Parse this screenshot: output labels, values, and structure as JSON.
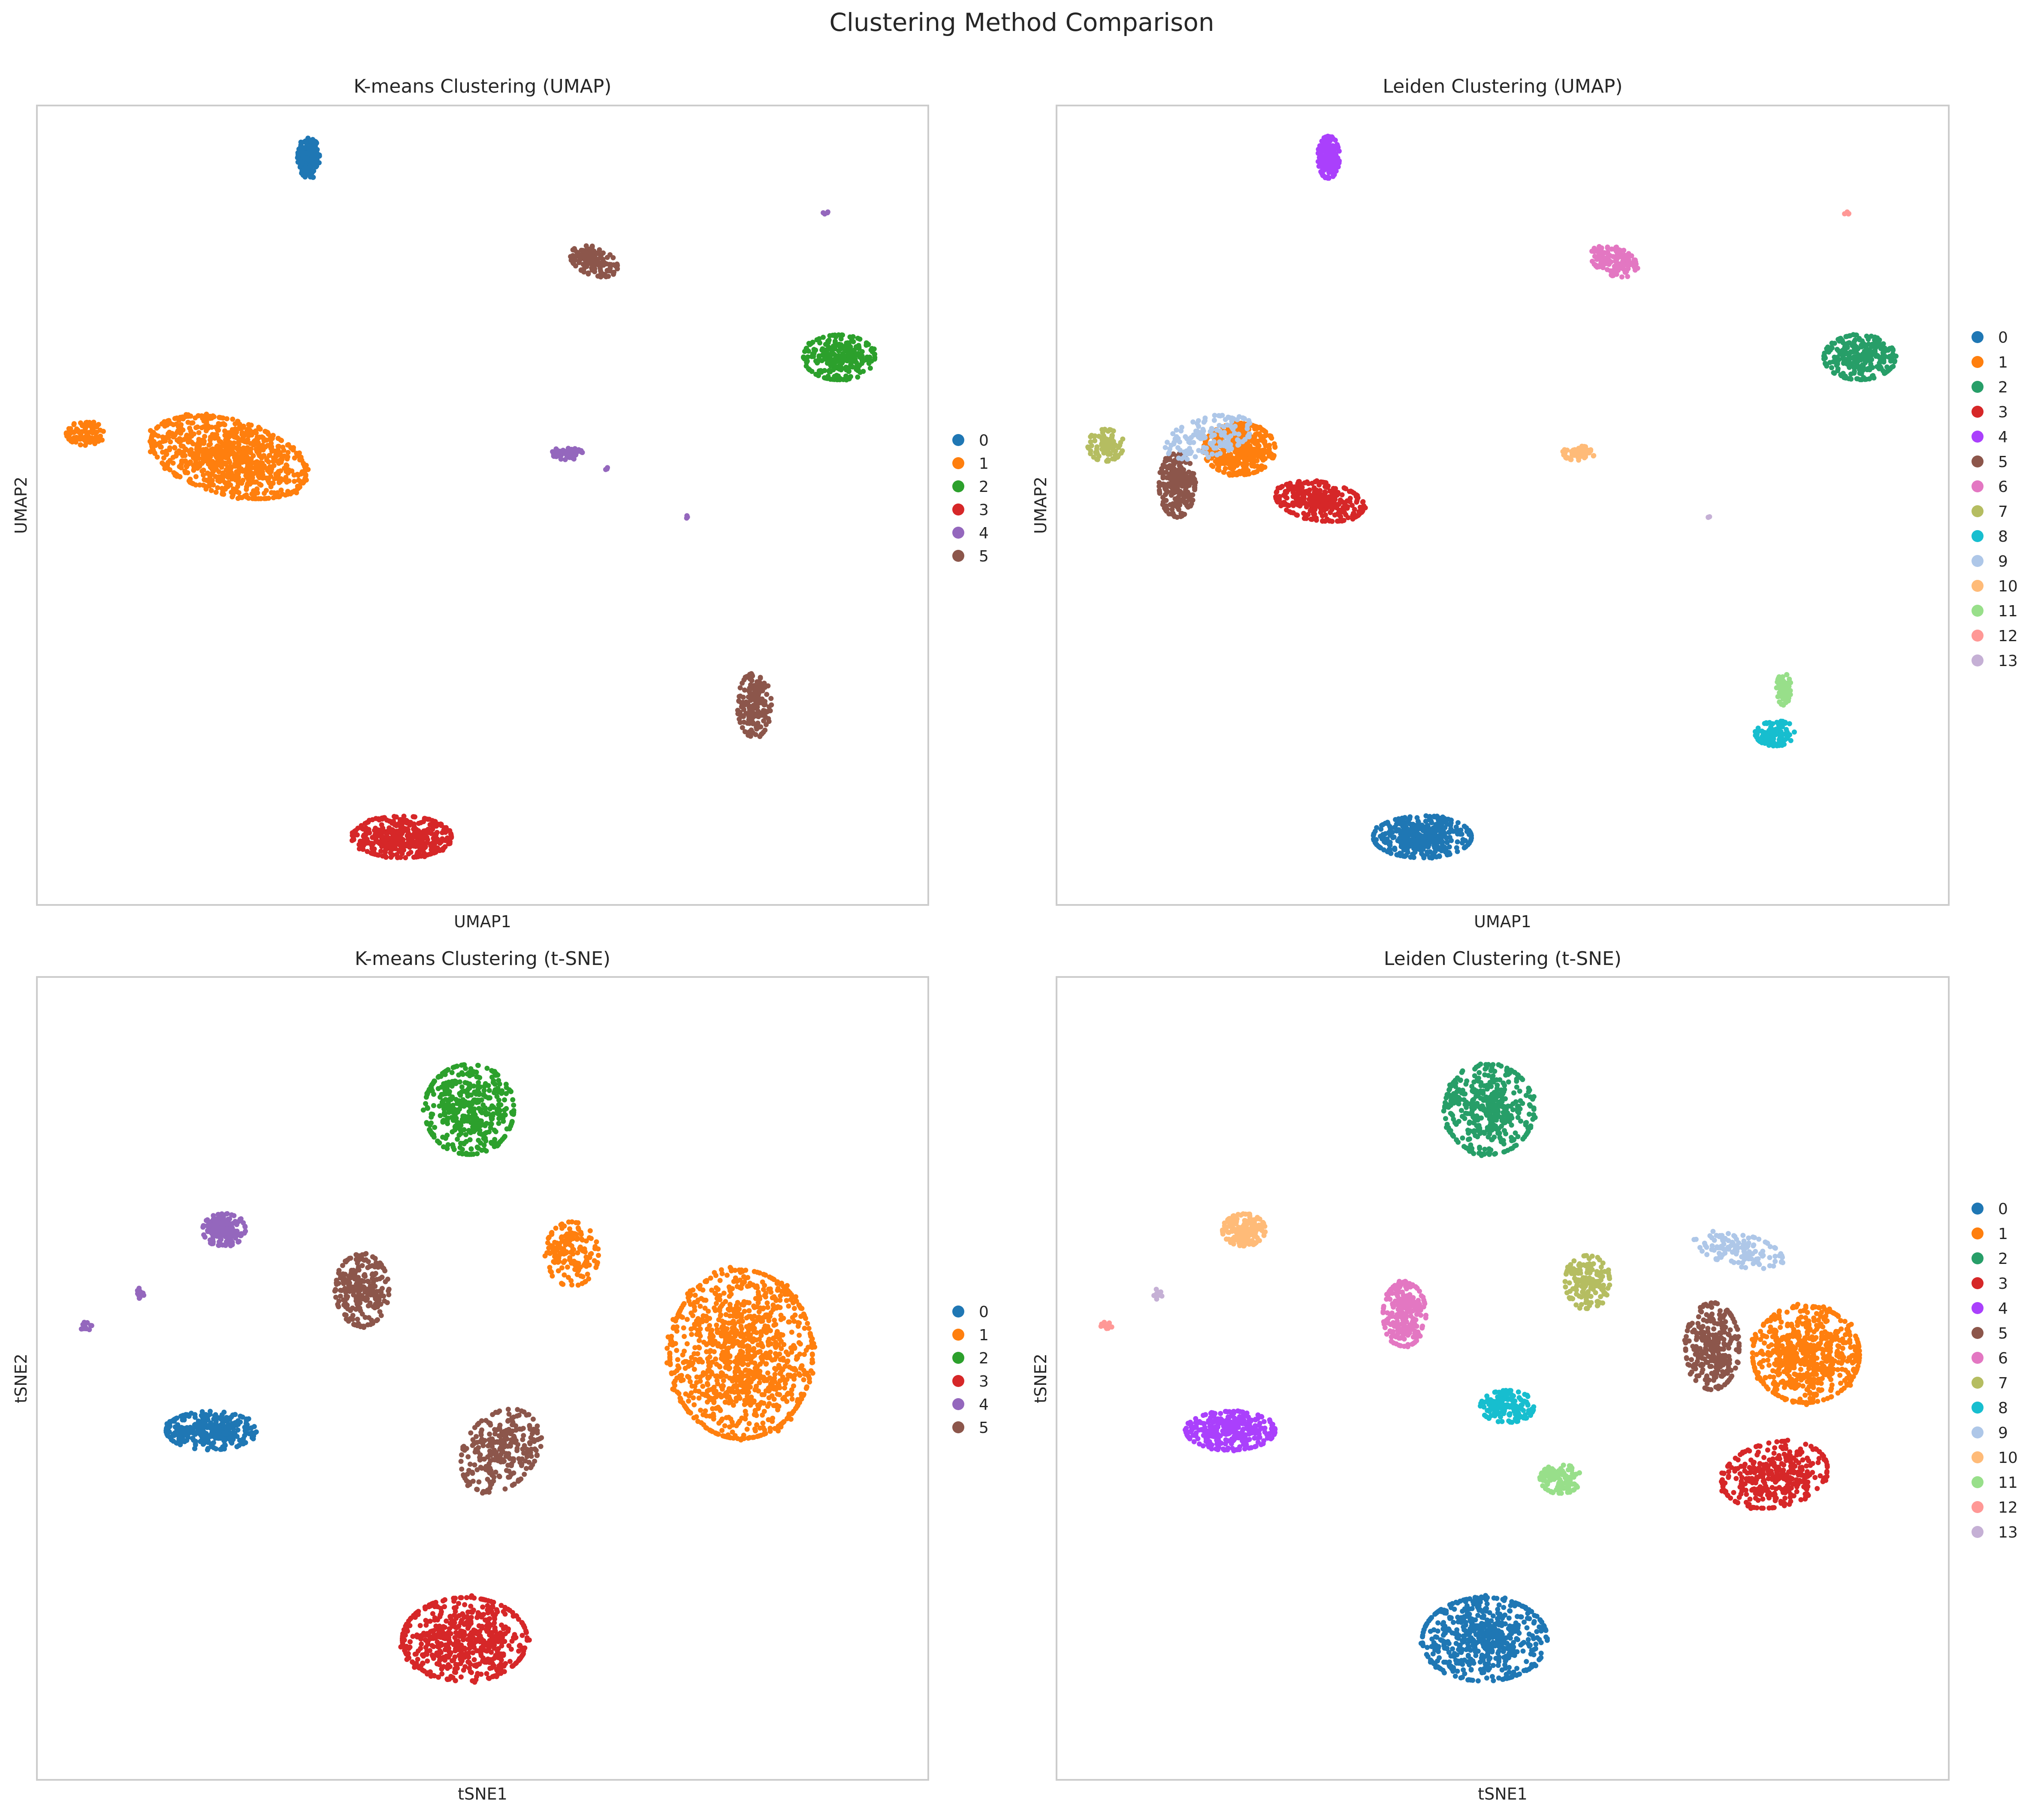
{
  "figure_title": "Clustering Method Comparison",
  "palette": [
    "#1f77b4",
    "#ff7f0e",
    "#279e68",
    "#d62728",
    "#aa40fc",
    "#8c564b",
    "#e377c2",
    "#b5bd61",
    "#17becf",
    "#aec7e8",
    "#ffbb78",
    "#98df8a",
    "#ff9896",
    "#c5b0d5"
  ],
  "palette_kmeans": [
    "#1f77b4",
    "#ff7f0e",
    "#2ca02c",
    "#d62728",
    "#9467bd",
    "#8c564b"
  ],
  "chart_data": [
    {
      "type": "scatter",
      "title": "K-means Clustering (UMAP)",
      "xlabel": "UMAP1",
      "ylabel": "UMAP2",
      "ticks": "none",
      "grid": false,
      "legend": "right",
      "xlim": [
        0,
        100
      ],
      "ylim": [
        0,
        100
      ],
      "legend_entries": [
        "0",
        "1",
        "2",
        "3",
        "4",
        "5"
      ],
      "clusters": [
        {
          "label": "0",
          "color_index": 0,
          "points": [
            {
              "cx": 30.5,
              "cy": 93.5,
              "sx": 1.2,
              "sy": 2.6,
              "n": 180
            }
          ]
        },
        {
          "label": "1",
          "color_index": 1,
          "points": [
            {
              "cx": 21.5,
              "cy": 56,
              "sx": 9,
              "sy": 4.6,
              "n": 900,
              "rot": -18
            },
            {
              "cx": 5.5,
              "cy": 59,
              "sx": 2.2,
              "sy": 1.5,
              "n": 90
            }
          ]
        },
        {
          "label": "2",
          "color_index": 2,
          "points": [
            {
              "cx": 90,
              "cy": 68.5,
              "sx": 4,
              "sy": 2.8,
              "n": 260
            }
          ]
        },
        {
          "label": "3",
          "color_index": 3,
          "points": [
            {
              "cx": 41,
              "cy": 8.5,
              "sx": 5.5,
              "sy": 2.6,
              "n": 420
            }
          ]
        },
        {
          "label": "4",
          "color_index": 4,
          "points": [
            {
              "cx": 59.5,
              "cy": 56.5,
              "sx": 1.7,
              "sy": 0.8,
              "n": 70
            },
            {
              "cx": 64,
              "cy": 54.5,
              "sx": 0.2,
              "sy": 0.2,
              "n": 3
            },
            {
              "cx": 73,
              "cy": 48.5,
              "sx": 0.2,
              "sy": 0.2,
              "n": 3
            },
            {
              "cx": 88.5,
              "cy": 86.5,
              "sx": 0.3,
              "sy": 0.3,
              "n": 4
            }
          ]
        },
        {
          "label": "5",
          "color_index": 5,
          "points": [
            {
              "cx": 62.5,
              "cy": 80.5,
              "sx": 2.8,
              "sy": 1.7,
              "n": 130,
              "rot": -25
            },
            {
              "cx": 80.5,
              "cy": 25,
              "sx": 1.9,
              "sy": 4,
              "n": 170
            }
          ]
        }
      ]
    },
    {
      "type": "scatter",
      "title": "Leiden Clustering (UMAP)",
      "xlabel": "UMAP1",
      "ylabel": "UMAP2",
      "ticks": "none",
      "grid": false,
      "legend": "right",
      "xlim": [
        0,
        100
      ],
      "ylim": [
        0,
        100
      ],
      "legend_entries": [
        "0",
        "1",
        "2",
        "3",
        "4",
        "5",
        "6",
        "7",
        "8",
        "9",
        "10",
        "11",
        "12",
        "13"
      ],
      "clusters": [
        {
          "label": "0",
          "color_index": 0,
          "points": [
            {
              "cx": 41,
              "cy": 8.5,
              "sx": 5.5,
              "sy": 2.6,
              "n": 420
            }
          ]
        },
        {
          "label": "1",
          "color_index": 1,
          "points": [
            {
              "cx": 20.5,
              "cy": 57,
              "sx": 4,
              "sy": 3.2,
              "n": 450
            }
          ]
        },
        {
          "label": "2",
          "color_index": 2,
          "points": [
            {
              "cx": 90,
              "cy": 68.5,
              "sx": 4,
              "sy": 2.8,
              "n": 260
            }
          ]
        },
        {
          "label": "3",
          "color_index": 3,
          "points": [
            {
              "cx": 29.5,
              "cy": 50.5,
              "sx": 5,
              "sy": 2.4,
              "n": 330,
              "rot": -10
            }
          ]
        },
        {
          "label": "4",
          "color_index": 4,
          "points": [
            {
              "cx": 30.5,
              "cy": 93.5,
              "sx": 1.2,
              "sy": 2.6,
              "n": 180
            }
          ]
        },
        {
          "label": "5",
          "color_index": 5,
          "points": [
            {
              "cx": 13.5,
              "cy": 52.5,
              "sx": 2,
              "sy": 4,
              "n": 220
            }
          ]
        },
        {
          "label": "6",
          "color_index": 6,
          "points": [
            {
              "cx": 62.5,
              "cy": 80.5,
              "sx": 2.8,
              "sy": 1.7,
              "n": 130,
              "rot": -25
            }
          ]
        },
        {
          "label": "7",
          "color_index": 7,
          "points": [
            {
              "cx": 5.5,
              "cy": 57.5,
              "sx": 2,
              "sy": 2,
              "n": 90
            }
          ]
        },
        {
          "label": "8",
          "color_index": 8,
          "points": [
            {
              "cx": 80.5,
              "cy": 21.5,
              "sx": 2.2,
              "sy": 1.6,
              "n": 100
            }
          ]
        },
        {
          "label": "9",
          "color_index": 9,
          "points": [
            {
              "cx": 17,
              "cy": 58.5,
              "sx": 5,
              "sy": 2.4,
              "n": 150,
              "rot": 18
            }
          ]
        },
        {
          "label": "10",
          "color_index": 10,
          "points": [
            {
              "cx": 58.5,
              "cy": 56.5,
              "sx": 1.8,
              "sy": 0.9,
              "n": 70
            }
          ]
        },
        {
          "label": "11",
          "color_index": 11,
          "points": [
            {
              "cx": 81.5,
              "cy": 27,
              "sx": 0.8,
              "sy": 2,
              "n": 70
            }
          ]
        },
        {
          "label": "12",
          "color_index": 12,
          "points": [
            {
              "cx": 88.5,
              "cy": 86.5,
              "sx": 0.3,
              "sy": 0.3,
              "n": 4
            }
          ]
        },
        {
          "label": "13",
          "color_index": 13,
          "points": [
            {
              "cx": 73,
              "cy": 48.5,
              "sx": 0.2,
              "sy": 0.2,
              "n": 3
            }
          ]
        }
      ]
    },
    {
      "type": "scatter",
      "title": "K-means Clustering (t-SNE)",
      "xlabel": "tSNE1",
      "ylabel": "tSNE2",
      "ticks": "none",
      "grid": false,
      "legend": "right",
      "xlim": [
        0,
        100
      ],
      "ylim": [
        0,
        100
      ],
      "legend_entries": [
        "0",
        "1",
        "2",
        "3",
        "4",
        "5"
      ],
      "clusters": [
        {
          "label": "0",
          "color_index": 0,
          "points": [
            {
              "cx": 19.5,
              "cy": 43.5,
              "sx": 5,
              "sy": 2.4,
              "n": 320
            }
          ]
        },
        {
          "label": "1",
          "color_index": 1,
          "points": [
            {
              "cx": 79,
              "cy": 53,
              "sx": 8,
              "sy": 10.5,
              "n": 1100
            },
            {
              "cx": 60,
              "cy": 65.5,
              "sx": 3,
              "sy": 4,
              "n": 160
            }
          ]
        },
        {
          "label": "2",
          "color_index": 2,
          "points": [
            {
              "cx": 48.5,
              "cy": 83.5,
              "sx": 5,
              "sy": 5.6,
              "n": 420
            }
          ]
        },
        {
          "label": "3",
          "color_index": 3,
          "points": [
            {
              "cx": 48,
              "cy": 17.5,
              "sx": 7,
              "sy": 5.2,
              "n": 600
            }
          ]
        },
        {
          "label": "4",
          "color_index": 4,
          "points": [
            {
              "cx": 21,
              "cy": 68.5,
              "sx": 2.4,
              "sy": 2,
              "n": 180
            },
            {
              "cx": 11.5,
              "cy": 60.5,
              "sx": 0.6,
              "sy": 0.7,
              "n": 12
            },
            {
              "cx": 5.5,
              "cy": 56.5,
              "sx": 0.7,
              "sy": 0.5,
              "n": 14
            }
          ]
        },
        {
          "label": "5",
          "color_index": 5,
          "points": [
            {
              "cx": 36.5,
              "cy": 61,
              "sx": 3,
              "sy": 4.5,
              "n": 240
            },
            {
              "cx": 52,
              "cy": 41,
              "sx": 4,
              "sy": 5.5,
              "n": 280,
              "rot": -30
            }
          ]
        }
      ]
    },
    {
      "type": "scatter",
      "title": "Leiden Clustering (t-SNE)",
      "xlabel": "tSNE1",
      "ylabel": "tSNE2",
      "ticks": "none",
      "grid": false,
      "legend": "right",
      "xlim": [
        0,
        100
      ],
      "ylim": [
        0,
        100
      ],
      "legend_entries": [
        "0",
        "1",
        "2",
        "3",
        "4",
        "5",
        "6",
        "7",
        "8",
        "9",
        "10",
        "11",
        "12",
        "13"
      ],
      "clusters": [
        {
          "label": "0",
          "color_index": 0,
          "points": [
            {
              "cx": 48,
              "cy": 17.5,
              "sx": 7,
              "sy": 5.2,
              "n": 600
            }
          ]
        },
        {
          "label": "1",
          "color_index": 1,
          "points": [
            {
              "cx": 84,
              "cy": 53,
              "sx": 6,
              "sy": 6,
              "n": 650
            }
          ]
        },
        {
          "label": "2",
          "color_index": 2,
          "points": [
            {
              "cx": 48.5,
              "cy": 83.5,
              "sx": 5,
              "sy": 5.6,
              "n": 420
            }
          ]
        },
        {
          "label": "3",
          "color_index": 3,
          "points": [
            {
              "cx": 80.5,
              "cy": 38,
              "sx": 6,
              "sy": 4,
              "n": 360,
              "rot": 15
            }
          ]
        },
        {
          "label": "4",
          "color_index": 4,
          "points": [
            {
              "cx": 19.5,
              "cy": 43.5,
              "sx": 5,
              "sy": 2.4,
              "n": 320
            }
          ]
        },
        {
          "label": "5",
          "color_index": 5,
          "points": [
            {
              "cx": 73.5,
              "cy": 54,
              "sx": 3,
              "sy": 5.4,
              "n": 280
            }
          ]
        },
        {
          "label": "6",
          "color_index": 6,
          "points": [
            {
              "cx": 39,
              "cy": 58,
              "sx": 2.4,
              "sy": 4,
              "n": 240
            }
          ]
        },
        {
          "label": "7",
          "color_index": 7,
          "points": [
            {
              "cx": 59.5,
              "cy": 62,
              "sx": 2.5,
              "sy": 3.3,
              "n": 160
            }
          ]
        },
        {
          "label": "8",
          "color_index": 8,
          "points": [
            {
              "cx": 50.5,
              "cy": 46.5,
              "sx": 3,
              "sy": 2,
              "n": 140
            }
          ]
        },
        {
          "label": "9",
          "color_index": 9,
          "points": [
            {
              "cx": 76.5,
              "cy": 66,
              "sx": 5,
              "sy": 2,
              "n": 130,
              "rot": -15
            }
          ]
        },
        {
          "label": "10",
          "color_index": 10,
          "points": [
            {
              "cx": 21,
              "cy": 68.5,
              "sx": 2.4,
              "sy": 2,
              "n": 180
            }
          ]
        },
        {
          "label": "11",
          "color_index": 11,
          "points": [
            {
              "cx": 56.5,
              "cy": 37.5,
              "sx": 2.3,
              "sy": 1.8,
              "n": 110
            }
          ]
        },
        {
          "label": "12",
          "color_index": 12,
          "points": [
            {
              "cx": 5.5,
              "cy": 56.5,
              "sx": 0.7,
              "sy": 0.5,
              "n": 14
            }
          ]
        },
        {
          "label": "13",
          "color_index": 13,
          "points": [
            {
              "cx": 11.5,
              "cy": 60.5,
              "sx": 0.6,
              "sy": 0.7,
              "n": 12
            }
          ]
        }
      ]
    }
  ]
}
